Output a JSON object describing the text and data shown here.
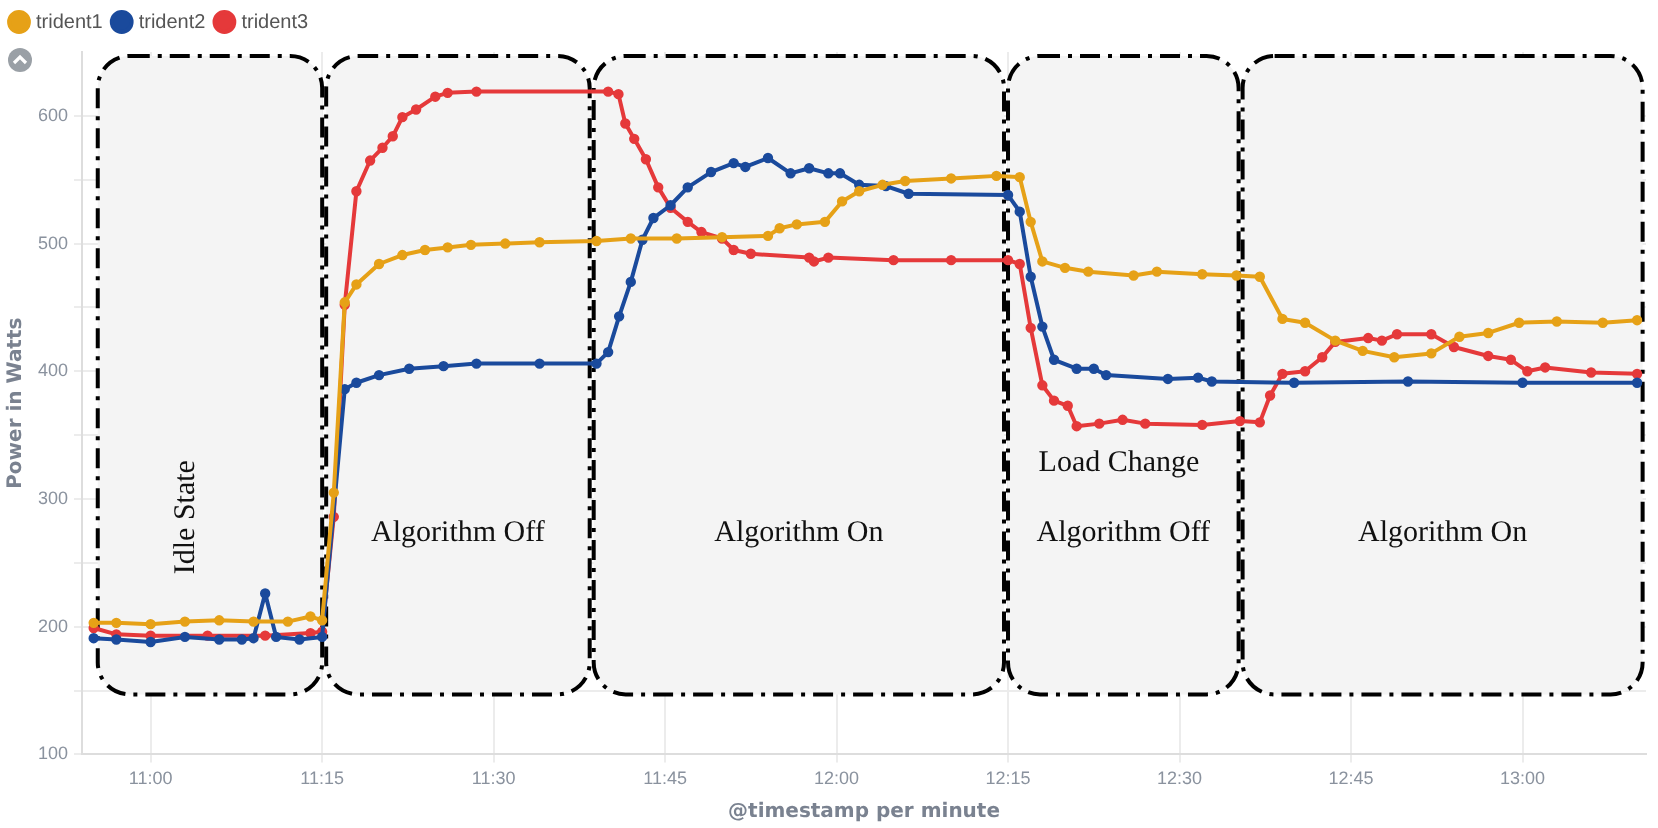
{
  "chart_data": {
    "type": "line",
    "xlabel": "@timestamp per minute",
    "ylabel": "Power in Watts",
    "xlim": [
      10.9,
      13.18
    ],
    "xticks": [
      {
        "value": 11,
        "label": "11:00"
      },
      {
        "value": 11.25,
        "label": "11:15"
      },
      {
        "value": 11.5,
        "label": "11:30"
      },
      {
        "value": 11.75,
        "label": "11:45"
      },
      {
        "value": 12,
        "label": "12:00"
      },
      {
        "value": 12.25,
        "label": "12:15"
      },
      {
        "value": 12.5,
        "label": "12:30"
      },
      {
        "value": 12.75,
        "label": "12:45"
      },
      {
        "value": 13,
        "label": "13:00"
      }
    ],
    "ylim": [
      100,
      650
    ],
    "yticks": [
      100,
      {
        "value": 150,
        "label": null
      },
      200,
      {
        "value": 250,
        "label": null
      },
      300,
      {
        "value": 350,
        "label": null
      },
      400,
      {
        "value": 450,
        "label": null
      },
      500,
      {
        "value": 550,
        "label": null
      },
      600
    ],
    "grid": true,
    "legend": "top left",
    "marker": "circle",
    "line_style": "solid",
    "series": [
      {
        "name": "trident1",
        "color": "#e6a117",
        "x": [
          10.917,
          10.95,
          11,
          11.05,
          11.1,
          11.15,
          11.2,
          11.233,
          11.25,
          11.267,
          11.283,
          11.3,
          11.333,
          11.367,
          11.4,
          11.433,
          11.467,
          11.517,
          11.567,
          11.65,
          11.7,
          11.767,
          11.833,
          11.9,
          11.917,
          11.942,
          11.983,
          12.008,
          12.033,
          12.067,
          12.1,
          12.167,
          12.233,
          12.267,
          12.283,
          12.3,
          12.333,
          12.367,
          12.433,
          12.467,
          12.533,
          12.583,
          12.617,
          12.65,
          12.683,
          12.727,
          12.767,
          12.813,
          12.867,
          12.908,
          12.95,
          12.995,
          13.05,
          13.117,
          13.167
        ],
        "values": [
          203,
          203,
          202,
          204,
          205,
          204,
          204,
          208,
          205,
          305,
          454,
          468,
          484,
          491,
          495,
          497,
          499,
          500,
          501,
          502,
          504,
          504,
          505,
          506,
          512,
          515,
          517,
          533,
          541,
          546,
          549,
          551,
          553,
          552,
          517,
          486,
          481,
          478,
          475,
          478,
          476,
          475,
          474,
          441,
          438,
          424,
          416,
          411,
          414,
          427,
          430,
          438,
          439,
          438,
          440
        ]
      },
      {
        "name": "trident2",
        "color": "#1a4a9c",
        "x": [
          10.917,
          10.95,
          11,
          11.05,
          11.1,
          11.133,
          11.15,
          11.167,
          11.183,
          11.217,
          11.25,
          11.283,
          11.3,
          11.333,
          11.377,
          11.427,
          11.475,
          11.567,
          11.65,
          11.667,
          11.683,
          11.7,
          11.717,
          11.733,
          11.758,
          11.783,
          11.817,
          11.85,
          11.867,
          11.9,
          11.933,
          11.96,
          11.988,
          12.005,
          12.033,
          12.072,
          12.105,
          12.25,
          12.267,
          12.283,
          12.3,
          12.317,
          12.35,
          12.375,
          12.393,
          12.483,
          12.527,
          12.547,
          12.667,
          12.833,
          13,
          13.167
        ],
        "values": [
          191,
          190,
          188,
          192,
          190,
          190,
          191,
          226,
          192,
          190,
          192,
          386,
          391,
          397,
          402,
          404,
          406,
          406,
          406,
          415,
          443,
          470,
          503,
          520,
          530,
          544,
          556,
          563,
          560,
          567,
          555,
          559,
          555,
          555,
          546,
          545,
          539,
          538,
          525,
          474,
          435,
          409,
          402,
          402,
          397,
          394,
          395,
          392,
          391,
          392,
          391,
          391
        ]
      },
      {
        "name": "trident3",
        "color": "#e5393a",
        "x": [
          10.917,
          10.95,
          11,
          11.083,
          11.167,
          11.233,
          11.25,
          11.267,
          11.283,
          11.3,
          11.32,
          11.338,
          11.353,
          11.367,
          11.387,
          11.415,
          11.433,
          11.475,
          11.667,
          11.682,
          11.692,
          11.705,
          11.722,
          11.74,
          11.758,
          11.783,
          11.803,
          11.833,
          11.85,
          11.875,
          11.96,
          11.967,
          11.988,
          12.083,
          12.167,
          12.25,
          12.267,
          12.283,
          12.3,
          12.317,
          12.337,
          12.35,
          12.383,
          12.417,
          12.45,
          12.533,
          12.588,
          12.617,
          12.632,
          12.65,
          12.683,
          12.708,
          12.727,
          12.775,
          12.795,
          12.817,
          12.867,
          12.9,
          12.95,
          12.983,
          13.007,
          13.033,
          13.1,
          13.167
        ],
        "values": [
          199,
          194,
          193,
          193,
          193,
          195,
          196,
          286,
          452,
          541,
          565,
          575,
          584,
          599,
          605,
          615,
          618,
          619,
          619,
          617,
          594,
          582,
          566,
          544,
          528,
          517,
          509,
          504,
          495,
          492,
          489,
          486,
          489,
          487,
          487,
          487,
          484,
          434,
          389,
          377,
          373,
          357,
          359,
          362,
          359,
          358,
          361,
          360,
          381,
          398,
          400,
          411,
          423,
          426,
          424,
          429,
          429,
          419,
          412,
          409,
          400,
          403,
          399,
          398
        ]
      }
    ],
    "bands": [
      {
        "axis": "x",
        "from": 10.92,
        "to": 11.253,
        "label": "Idle State",
        "color": "#f4f4f4"
      },
      {
        "axis": "x",
        "from": 11.253,
        "to": 11.643,
        "label": "Algorithm Off",
        "color": "#f4f4f4"
      },
      {
        "axis": "x",
        "from": 11.643,
        "to": 12.247,
        "label": "Algorithm On",
        "color": "#f4f4f4"
      },
      {
        "axis": "x",
        "from": 12.247,
        "to": 12.589,
        "label": "Algorithm Off",
        "color": "#f4f4f4"
      },
      {
        "axis": "x",
        "from": 12.589,
        "to": 13.178,
        "label": "Algorithm On",
        "color": "#f4f4f4"
      }
    ],
    "annotations": [
      "Load Change"
    ]
  }
}
